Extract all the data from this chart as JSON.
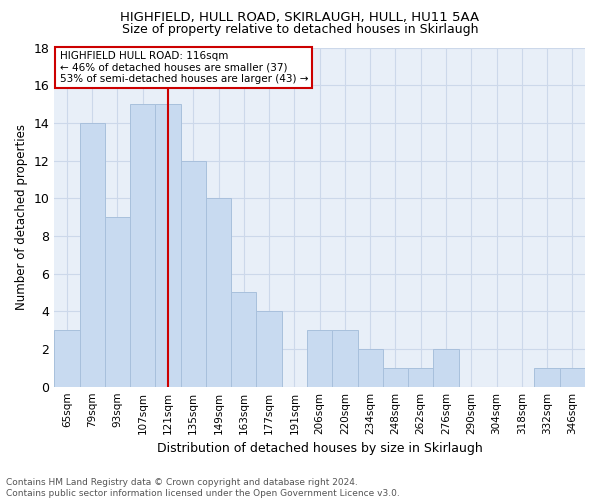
{
  "title1": "HIGHFIELD, HULL ROAD, SKIRLAUGH, HULL, HU11 5AA",
  "title2": "Size of property relative to detached houses in Skirlaugh",
  "xlabel": "Distribution of detached houses by size in Skirlaugh",
  "ylabel": "Number of detached properties",
  "categories": [
    "65sqm",
    "79sqm",
    "93sqm",
    "107sqm",
    "121sqm",
    "135sqm",
    "149sqm",
    "163sqm",
    "177sqm",
    "191sqm",
    "206sqm",
    "220sqm",
    "234sqm",
    "248sqm",
    "262sqm",
    "276sqm",
    "290sqm",
    "304sqm",
    "318sqm",
    "332sqm",
    "346sqm"
  ],
  "values": [
    3,
    14,
    9,
    15,
    15,
    12,
    10,
    5,
    4,
    0,
    3,
    3,
    2,
    1,
    1,
    2,
    0,
    0,
    0,
    1,
    1
  ],
  "bar_color": "#c8daf0",
  "bar_edge_color": "#a8c0dc",
  "vline_x": 4.5,
  "vline_color": "#cc0000",
  "annotation_text": "HIGHFIELD HULL ROAD: 116sqm\n← 46% of detached houses are smaller (37)\n53% of semi-detached houses are larger (43) →",
  "annotation_box_color": "#ffffff",
  "annotation_box_edge": "#cc0000",
  "ylim": [
    0,
    18
  ],
  "yticks": [
    0,
    2,
    4,
    6,
    8,
    10,
    12,
    14,
    16,
    18
  ],
  "footer": "Contains HM Land Registry data © Crown copyright and database right 2024.\nContains public sector information licensed under the Open Government Licence v3.0.",
  "grid_color": "#ccd8ea",
  "background_color": "#e8eff8"
}
